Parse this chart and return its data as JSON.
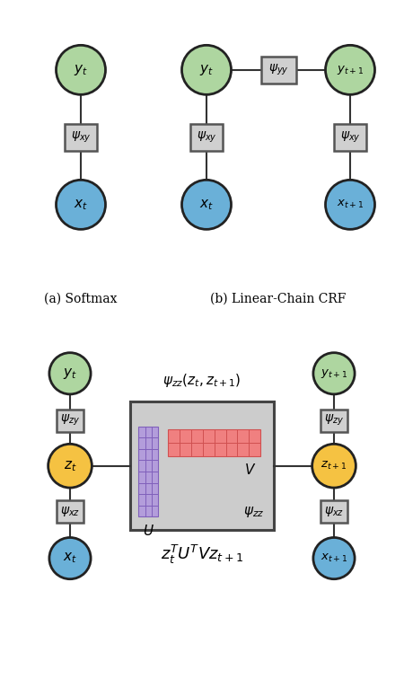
{
  "fig_width": 4.5,
  "fig_height": 7.56,
  "dpi": 100,
  "bg_color": "#ffffff",
  "green_circle_color": "#aed6a0",
  "blue_circle_color": "#6ab0d8",
  "yellow_circle_color": "#f5c242",
  "box_facecolor": "#d0d0d0",
  "box_edgecolor": "#555555",
  "big_box_color": "#cccccc",
  "big_box_edge": "#444444",
  "purple_color": "#b39ddb",
  "purple_edge": "#8060bb",
  "red_color": "#f08080",
  "red_edge": "#d05050",
  "circle_edge_color": "#222222",
  "line_color": "#333333",
  "label_a": "(a) Softmax",
  "label_b": "(b) Linear-Chain CRF"
}
